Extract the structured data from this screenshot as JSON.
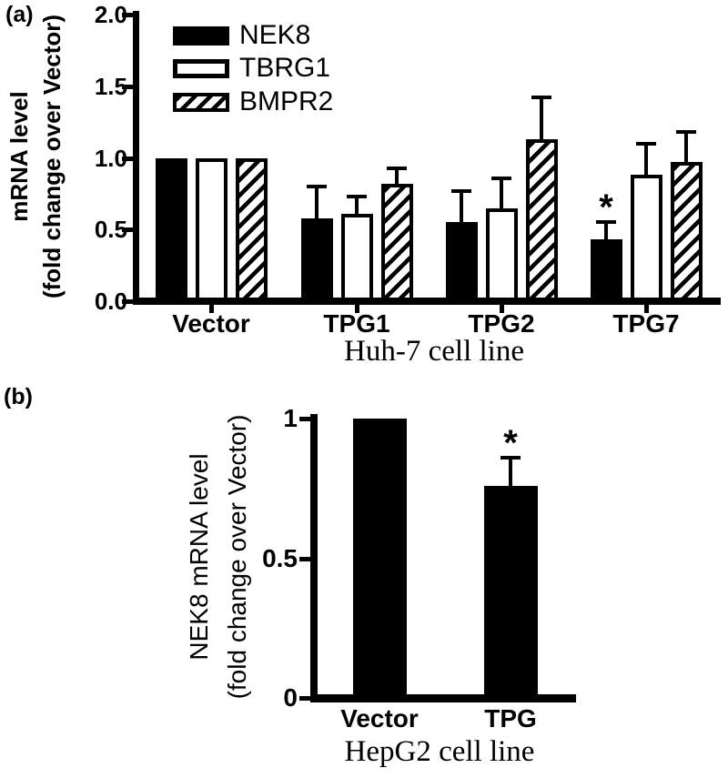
{
  "figure": {
    "background": "#ffffff",
    "ink": "#000000"
  },
  "panel_a": {
    "label": "(a)",
    "y_title_line1": "mRNA level",
    "y_title_line2": "(fold change over Vector)",
    "x_title": "Huh-7 cell line"
  },
  "panel_b": {
    "label": "(b)",
    "y_title_line1": "NEK8 mRNA level",
    "y_title_line2": "(fold change over Vector)",
    "x_title": "HepG2 cell line"
  },
  "chart_data": [
    {
      "id": "a",
      "type": "bar",
      "title": "",
      "xlabel": "Huh-7 cell line",
      "ylabel": "mRNA level (fold change over Vector)",
      "categories": [
        "Vector",
        "TPG1",
        "TPG2",
        "TPG7"
      ],
      "series": [
        {
          "name": "NEK8",
          "fill": "solid",
          "values": [
            1.0,
            0.58,
            0.55,
            0.43
          ],
          "errors": [
            0,
            0.22,
            0.22,
            0.12
          ],
          "significant": [
            false,
            false,
            false,
            true
          ]
        },
        {
          "name": "TBRG1",
          "fill": "open",
          "values": [
            1.0,
            0.61,
            0.65,
            0.88
          ],
          "errors": [
            0,
            0.12,
            0.21,
            0.22
          ],
          "significant": [
            false,
            false,
            false,
            false
          ]
        },
        {
          "name": "BMPR2",
          "fill": "hatch",
          "values": [
            1.0,
            0.82,
            1.13,
            0.97
          ],
          "errors": [
            0,
            0.11,
            0.29,
            0.21
          ],
          "significant": [
            false,
            false,
            false,
            false
          ]
        }
      ],
      "ylim": [
        0,
        2
      ],
      "yticks": [
        {
          "label": "0.0",
          "value": 0
        },
        {
          "label": "0.5",
          "value": 0.5
        },
        {
          "label": "1.0",
          "value": 1
        },
        {
          "label": "1.5",
          "value": 1.5
        },
        {
          "label": "2.0",
          "value": 2
        }
      ],
      "legend_position": "top-left",
      "grid": false,
      "error_bars": "upper-sd-with-cap",
      "significance_marker": "*"
    },
    {
      "id": "b",
      "type": "bar",
      "title": "",
      "xlabel": "HepG2 cell line",
      "ylabel": "NEK8 mRNA level (fold change over Vector)",
      "categories": [
        "Vector",
        "TPG"
      ],
      "series": [
        {
          "name": "NEK8",
          "fill": "solid",
          "values": [
            1.0,
            0.76
          ],
          "errors": [
            0,
            0.1
          ],
          "significant": [
            false,
            true
          ]
        }
      ],
      "ylim": [
        0,
        1
      ],
      "yticks": [
        {
          "label": "0",
          "value": 0
        },
        {
          "label": "0.5",
          "value": 0.5
        },
        {
          "label": "1",
          "value": 1
        }
      ],
      "legend_position": "none",
      "grid": false,
      "error_bars": "upper-sd-with-cap",
      "significance_marker": "*"
    }
  ]
}
